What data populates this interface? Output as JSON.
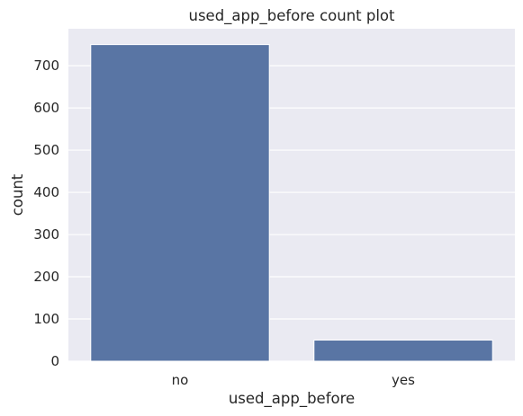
{
  "chart_data": {
    "type": "bar",
    "title": "used_app_before count plot",
    "xlabel": "used_app_before",
    "ylabel": "count",
    "categories": [
      "no",
      "yes"
    ],
    "values": [
      750,
      50
    ],
    "ylim": [
      0,
      787.5
    ],
    "yticks": [
      0,
      100,
      200,
      300,
      400,
      500,
      600,
      700
    ],
    "grid": true,
    "legend": "none",
    "colors": {
      "bar": "#5975a4",
      "background": "#eaeaf2",
      "grid": "#ffffff",
      "text": "#262626"
    }
  }
}
